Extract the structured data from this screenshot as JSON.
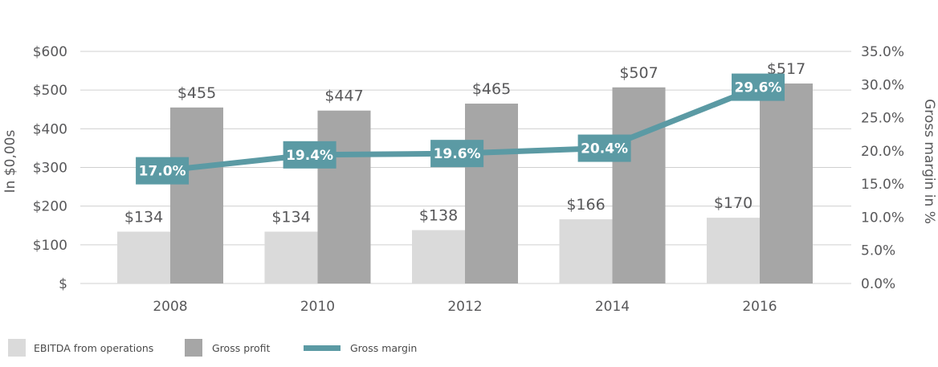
{
  "chart_data": {
    "type": "bar",
    "categories": [
      "2008",
      "2010",
      "2012",
      "2014",
      "2016"
    ],
    "series": [
      {
        "name": "EBITDA from operations",
        "kind": "bar",
        "axis": "left",
        "color": "#dadada",
        "values": [
          134,
          134,
          138,
          166,
          170
        ],
        "labels": [
          "$134",
          "$134",
          "$138",
          "$166",
          "$170"
        ]
      },
      {
        "name": "Gross profit",
        "kind": "bar",
        "axis": "left",
        "color": "#a6a6a6",
        "values": [
          455,
          447,
          465,
          507,
          517
        ],
        "labels": [
          "$455",
          "$447",
          "$465",
          "$507",
          "$517"
        ]
      },
      {
        "name": "Gross margin",
        "kind": "line",
        "axis": "right",
        "color": "#5b9aa4",
        "values": [
          17.0,
          19.4,
          19.6,
          20.4,
          29.6
        ],
        "labels": [
          "17.0%",
          "19.4%",
          "19.6%",
          "20.4%",
          "29.6%"
        ]
      }
    ],
    "ylabel": "In $0,00s",
    "y2label": "Gross margin in %",
    "ylim": [
      0,
      600
    ],
    "y2lim": [
      0,
      35
    ],
    "yticks": [
      0,
      100,
      200,
      300,
      400,
      500,
      600
    ],
    "yticklabels": [
      "$",
      "$100",
      "$200",
      "$300",
      "$400",
      "$500",
      "$600"
    ],
    "y2ticks": [
      0,
      5,
      10,
      15,
      20,
      25,
      30,
      35
    ],
    "y2ticklabels": [
      "0.0%",
      "5.0%",
      "10.0%",
      "15.0%",
      "20.0%",
      "25.0%",
      "30.0%",
      "35.0%"
    ],
    "grid": true,
    "legend_position": "bottom-left"
  }
}
